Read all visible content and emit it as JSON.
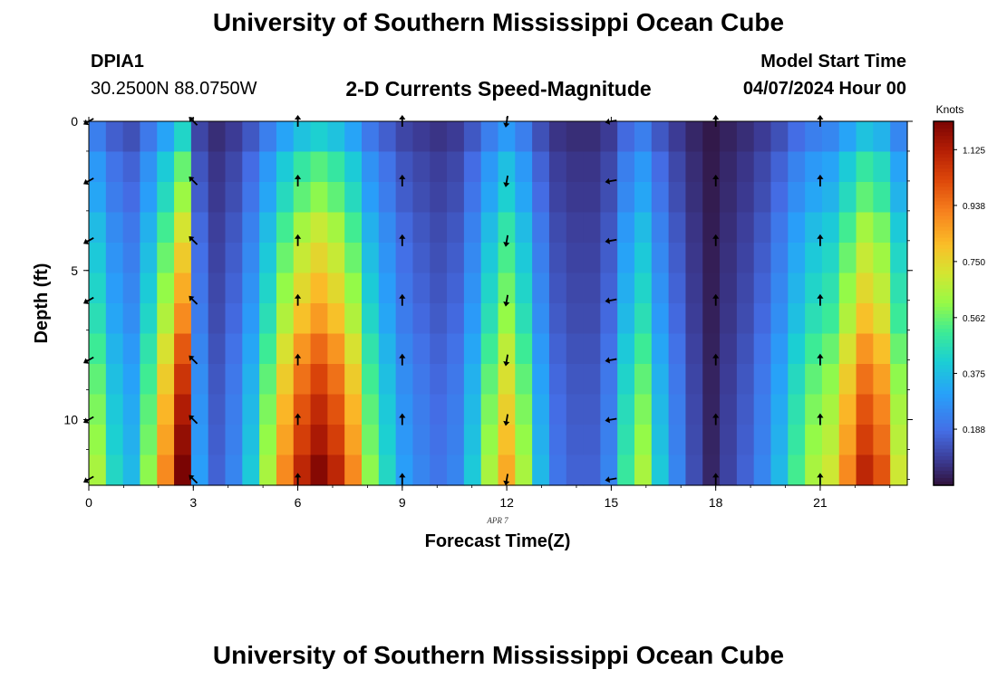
{
  "header": {
    "title": "University of Southern Mississippi Ocean Cube",
    "footer_title": "University of Southern Mississippi Ocean Cube",
    "station_id": "DPIA1",
    "coordinates": "30.2500N  88.0750W",
    "plot_title": "2-D Currents Speed-Magnitude",
    "model_label": "Model Start Time",
    "model_time": "04/07/2024 Hour 00"
  },
  "chart_data": {
    "type": "heatmap",
    "title": "2-D Currents Speed-Magnitude",
    "xlabel": "Forecast Time(Z)",
    "ylabel": "Depth (ft)",
    "date_label": "APR 7",
    "xlim": [
      0,
      23.5
    ],
    "ylim": [
      0,
      12.2
    ],
    "x_ticks": [
      0,
      3,
      6,
      9,
      12,
      15,
      18,
      21
    ],
    "x_tick_labels": [
      "0",
      "3",
      "6",
      "9",
      "12",
      "15",
      "18",
      "21"
    ],
    "y_ticks": [
      0,
      5,
      10
    ],
    "y_tick_labels": [
      "0",
      "5",
      "10"
    ],
    "colorbar": {
      "label": "Knots",
      "range": [
        0.0,
        1.22
      ],
      "ticks": [
        0.188,
        0.375,
        0.562,
        0.75,
        0.938,
        1.125
      ],
      "tick_labels": [
        "0.188",
        "0.375",
        "0.562",
        "0.750",
        "0.938",
        "1.125"
      ]
    },
    "speed_profile_knots": [
      0.32,
      0.22,
      0.18,
      0.3,
      0.45,
      0.62,
      0.15,
      0.08,
      0.12,
      0.2,
      0.32,
      0.45,
      0.55,
      0.6,
      0.55,
      0.45,
      0.3,
      0.22,
      0.15,
      0.12,
      0.1,
      0.12,
      0.2,
      0.32,
      0.42,
      0.32,
      0.18,
      0.1,
      0.08,
      0.08,
      0.12,
      0.25,
      0.32,
      0.2,
      0.12,
      0.06,
      0.02,
      0.05,
      0.08,
      0.12,
      0.18,
      0.26,
      0.32,
      0.35,
      0.45,
      0.55,
      0.5,
      0.35
    ],
    "depth_factor": [
      0.7,
      0.9,
      1.0,
      1.15,
      1.25,
      1.35,
      1.45,
      1.6,
      1.72,
      1.82,
      1.9,
      2.0
    ],
    "arrow_hours": [
      0,
      3,
      6,
      9,
      12,
      15,
      18,
      21
    ],
    "arrow_depths_ft": [
      0,
      2,
      4,
      6,
      8,
      10,
      12
    ],
    "arrow_directions_deg": [
      60,
      135,
      180,
      180,
      10,
      80,
      180,
      180
    ]
  }
}
